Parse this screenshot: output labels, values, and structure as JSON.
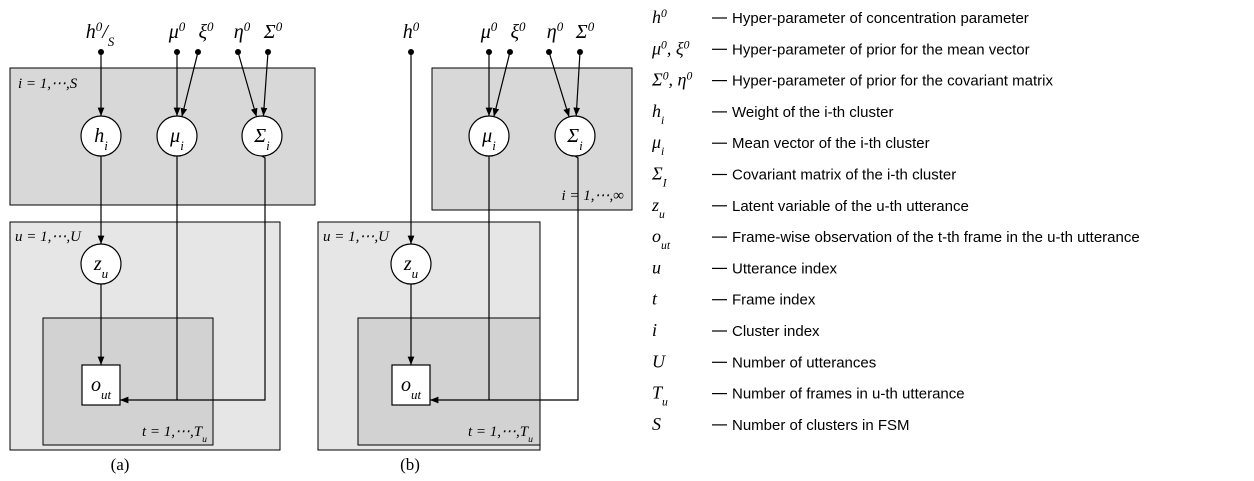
{
  "diagrams": [
    {
      "caption": "(a)",
      "hyperparameters": [
        [
          {
            "t": "h"
          },
          {
            "t": "0",
            "pos": "sup"
          },
          {
            "t": "/"
          },
          {
            "t": "S",
            "pos": "sub"
          }
        ],
        [
          {
            "t": "μ"
          },
          {
            "t": "0",
            "pos": "sup"
          }
        ],
        [
          {
            "t": "ξ"
          },
          {
            "t": "0",
            "pos": "sup"
          }
        ],
        [
          {
            "t": "η"
          },
          {
            "t": "0",
            "pos": "sup"
          }
        ],
        [
          {
            "t": "Σ"
          },
          {
            "t": "0",
            "pos": "sup"
          }
        ]
      ],
      "plates": [
        [
          {
            "t": "i = 1,⋯,S"
          }
        ],
        [
          {
            "t": "u = 1,⋯,U"
          }
        ],
        [
          {
            "t": "t = 1,⋯,T"
          },
          {
            "t": "u",
            "pos": "sub"
          }
        ]
      ],
      "nodes": [
        [
          {
            "t": "h"
          },
          {
            "t": "i",
            "pos": "sub"
          }
        ],
        [
          {
            "t": "μ"
          },
          {
            "t": "i",
            "pos": "sub"
          }
        ],
        [
          {
            "t": "Σ"
          },
          {
            "t": "i",
            "pos": "sub"
          }
        ],
        [
          {
            "t": "z"
          },
          {
            "t": "u",
            "pos": "sub"
          }
        ],
        [
          {
            "t": "o"
          },
          {
            "t": "ut",
            "pos": "sub"
          }
        ]
      ]
    },
    {
      "caption": "(b)",
      "hyperparameters": [
        [
          {
            "t": "h"
          },
          {
            "t": "0",
            "pos": "sup"
          }
        ],
        [
          {
            "t": "μ"
          },
          {
            "t": "0",
            "pos": "sup"
          }
        ],
        [
          {
            "t": "ξ"
          },
          {
            "t": "0",
            "pos": "sup"
          }
        ],
        [
          {
            "t": "η"
          },
          {
            "t": "0",
            "pos": "sup"
          }
        ],
        [
          {
            "t": "Σ"
          },
          {
            "t": "0",
            "pos": "sup"
          }
        ]
      ],
      "plates": [
        [
          {
            "t": "i = 1,⋯,∞"
          }
        ],
        [
          {
            "t": "u = 1,⋯,U"
          }
        ],
        [
          {
            "t": "t = 1,⋯,T"
          },
          {
            "t": "u",
            "pos": "sub"
          }
        ]
      ],
      "nodes": [
        [
          {
            "t": "μ"
          },
          {
            "t": "i",
            "pos": "sub"
          }
        ],
        [
          {
            "t": "Σ"
          },
          {
            "t": "i",
            "pos": "sub"
          }
        ],
        [
          {
            "t": "z"
          },
          {
            "t": "u",
            "pos": "sub"
          }
        ],
        [
          {
            "t": "o"
          },
          {
            "t": "ut",
            "pos": "sub"
          }
        ]
      ]
    }
  ],
  "legend": [
    {
      "symbol": [
        {
          "t": "h"
        },
        {
          "t": "0",
          "pos": "sup"
        }
      ],
      "description": "Hyper-parameter of concentration parameter"
    },
    {
      "symbol": [
        {
          "t": "μ"
        },
        {
          "t": "0",
          "pos": "sup"
        },
        {
          "t": ", ξ"
        },
        {
          "t": "0",
          "pos": "sup"
        }
      ],
      "description": "Hyper-parameter of prior for the mean vector"
    },
    {
      "symbol": [
        {
          "t": "Σ"
        },
        {
          "t": "0",
          "pos": "sup"
        },
        {
          "t": ", η"
        },
        {
          "t": "0",
          "pos": "sup"
        }
      ],
      "description": "Hyper-parameter of prior for the covariant matrix"
    },
    {
      "symbol": [
        {
          "t": "h"
        },
        {
          "t": "i",
          "pos": "sub"
        }
      ],
      "description": "Weight of the i-th cluster"
    },
    {
      "symbol": [
        {
          "t": "μ"
        },
        {
          "t": "i",
          "pos": "sub"
        }
      ],
      "description": "Mean vector of the i-th cluster"
    },
    {
      "symbol": [
        {
          "t": "Σ"
        },
        {
          "t": "I",
          "pos": "sub"
        }
      ],
      "description": "Covariant matrix of the i-th cluster"
    },
    {
      "symbol": [
        {
          "t": "z"
        },
        {
          "t": "u",
          "pos": "sub"
        }
      ],
      "description": "Latent variable of the u-th utterance"
    },
    {
      "symbol": [
        {
          "t": "o"
        },
        {
          "t": "ut",
          "pos": "sub"
        }
      ],
      "description": "Frame-wise observation of the t-th frame in the u-th utterance"
    },
    {
      "symbol": [
        {
          "t": "u"
        }
      ],
      "description": "Utterance index"
    },
    {
      "symbol": [
        {
          "t": "t"
        }
      ],
      "description": "Frame index"
    },
    {
      "symbol": [
        {
          "t": "i"
        }
      ],
      "description": "Cluster index"
    },
    {
      "symbol": [
        {
          "t": "U"
        }
      ],
      "description": "Number of utterances"
    },
    {
      "symbol": [
        {
          "t": "T"
        },
        {
          "t": "u",
          "pos": "sub"
        }
      ],
      "description": "Number of frames in u-th utterance"
    },
    {
      "symbol": [
        {
          "t": "S"
        }
      ],
      "description": "Number of clusters in FSM"
    }
  ]
}
